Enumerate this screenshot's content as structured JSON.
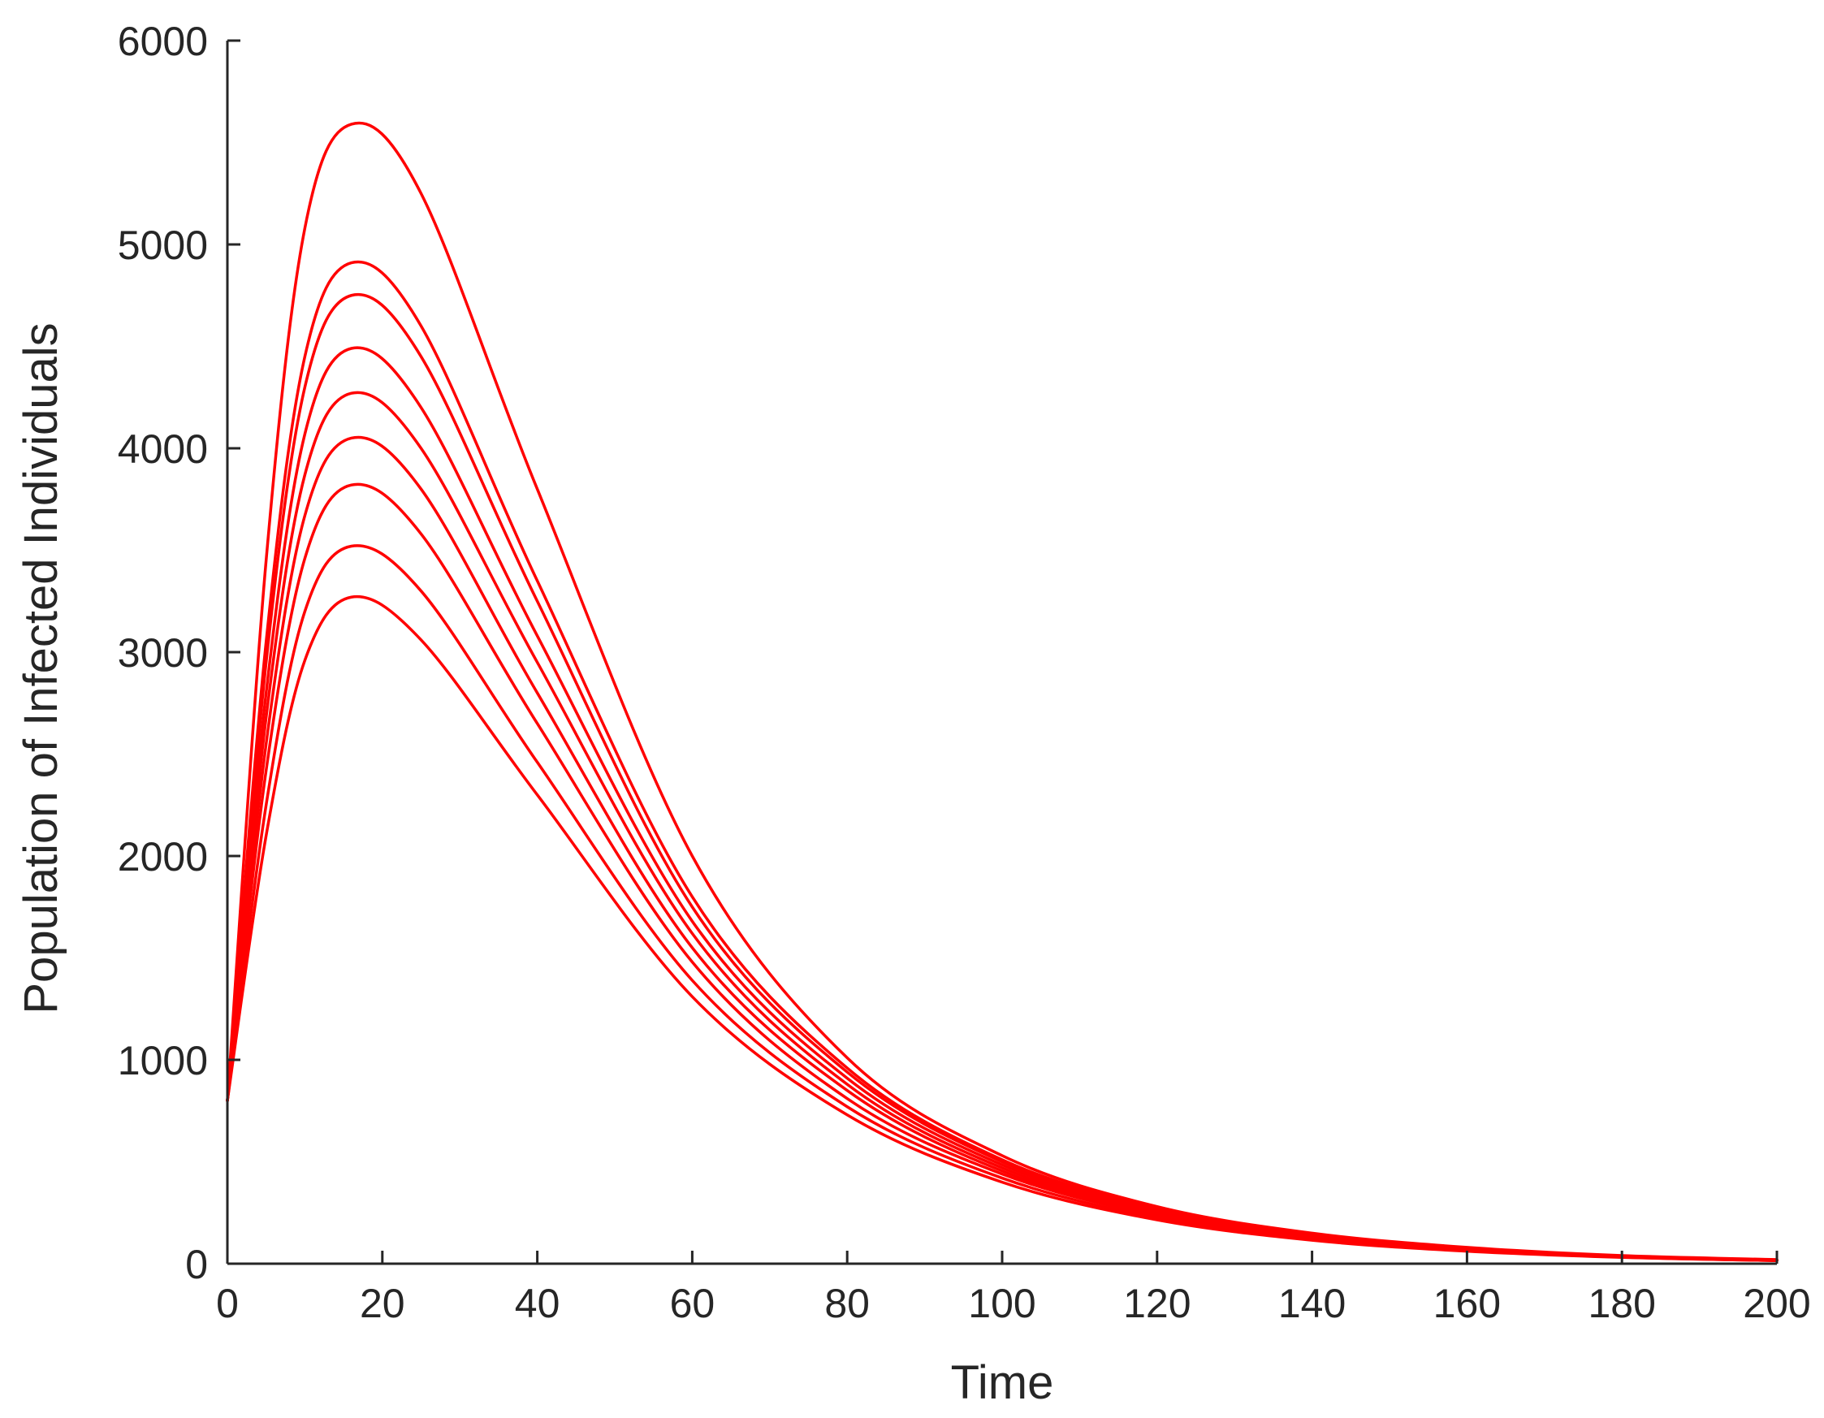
{
  "chart_data": {
    "type": "line",
    "title": "",
    "xlabel": "Time",
    "ylabel": "Population of Infected Individuals",
    "xlim": [
      0,
      200
    ],
    "ylim": [
      0,
      6000
    ],
    "xticks": [
      0,
      20,
      40,
      60,
      80,
      100,
      120,
      140,
      160,
      180,
      200
    ],
    "yticks": [
      0,
      1000,
      2000,
      3000,
      4000,
      5000,
      6000
    ],
    "grid": false,
    "legend": "none",
    "line_color": "#ff0000",
    "series": [
      {
        "x": [
          0,
          5,
          10,
          16,
          25,
          40,
          60,
          80,
          100,
          120,
          140,
          160,
          180,
          200
        ],
        "y": [
          800,
          3450,
          5080,
          5590,
          5250,
          3800,
          2000,
          1010,
          530,
          280,
          150,
          80,
          40,
          20
        ]
      },
      {
        "x": [
          0,
          5,
          10,
          16,
          25,
          40,
          60,
          80,
          100,
          120,
          140,
          160,
          180,
          200
        ],
        "y": [
          800,
          3050,
          4450,
          4910,
          4600,
          3350,
          1800,
          960,
          510,
          270,
          140,
          75,
          38,
          18
        ]
      },
      {
        "x": [
          0,
          5,
          10,
          16,
          25,
          40,
          60,
          80,
          100,
          120,
          140,
          160,
          180,
          200
        ],
        "y": [
          800,
          2950,
          4300,
          4750,
          4450,
          3250,
          1750,
          940,
          500,
          265,
          140,
          74,
          37,
          18
        ]
      },
      {
        "x": [
          0,
          5,
          10,
          16,
          25,
          40,
          60,
          80,
          100,
          120,
          140,
          160,
          180,
          200
        ],
        "y": [
          800,
          2800,
          4070,
          4490,
          4200,
          3080,
          1680,
          910,
          485,
          258,
          136,
          72,
          36,
          17
        ]
      },
      {
        "x": [
          0,
          5,
          10,
          16,
          25,
          40,
          60,
          80,
          100,
          120,
          140,
          160,
          180,
          200
        ],
        "y": [
          800,
          2680,
          3870,
          4270,
          4000,
          2950,
          1620,
          880,
          470,
          250,
          133,
          70,
          35,
          17
        ]
      },
      {
        "x": [
          0,
          5,
          10,
          16,
          25,
          40,
          60,
          80,
          100,
          120,
          140,
          160,
          180,
          200
        ],
        "y": [
          800,
          2550,
          3670,
          4050,
          3800,
          2800,
          1550,
          850,
          455,
          243,
          130,
          68,
          34,
          16
        ]
      },
      {
        "x": [
          0,
          5,
          10,
          16,
          25,
          40,
          60,
          80,
          100,
          120,
          140,
          160,
          180,
          200
        ],
        "y": [
          800,
          2420,
          3460,
          3820,
          3580,
          2650,
          1480,
          810,
          440,
          235,
          125,
          66,
          33,
          16
        ]
      },
      {
        "x": [
          0,
          5,
          10,
          16,
          25,
          40,
          60,
          80,
          100,
          120,
          140,
          160,
          180,
          200
        ],
        "y": [
          800,
          2250,
          3200,
          3520,
          3300,
          2460,
          1390,
          770,
          420,
          225,
          120,
          64,
          32,
          15
        ]
      },
      {
        "x": [
          0,
          5,
          10,
          16,
          25,
          40,
          60,
          80,
          100,
          120,
          140,
          160,
          180,
          200
        ],
        "y": [
          800,
          2100,
          2960,
          3270,
          3060,
          2300,
          1310,
          730,
          400,
          215,
          115,
          61,
          31,
          15
        ]
      }
    ]
  }
}
